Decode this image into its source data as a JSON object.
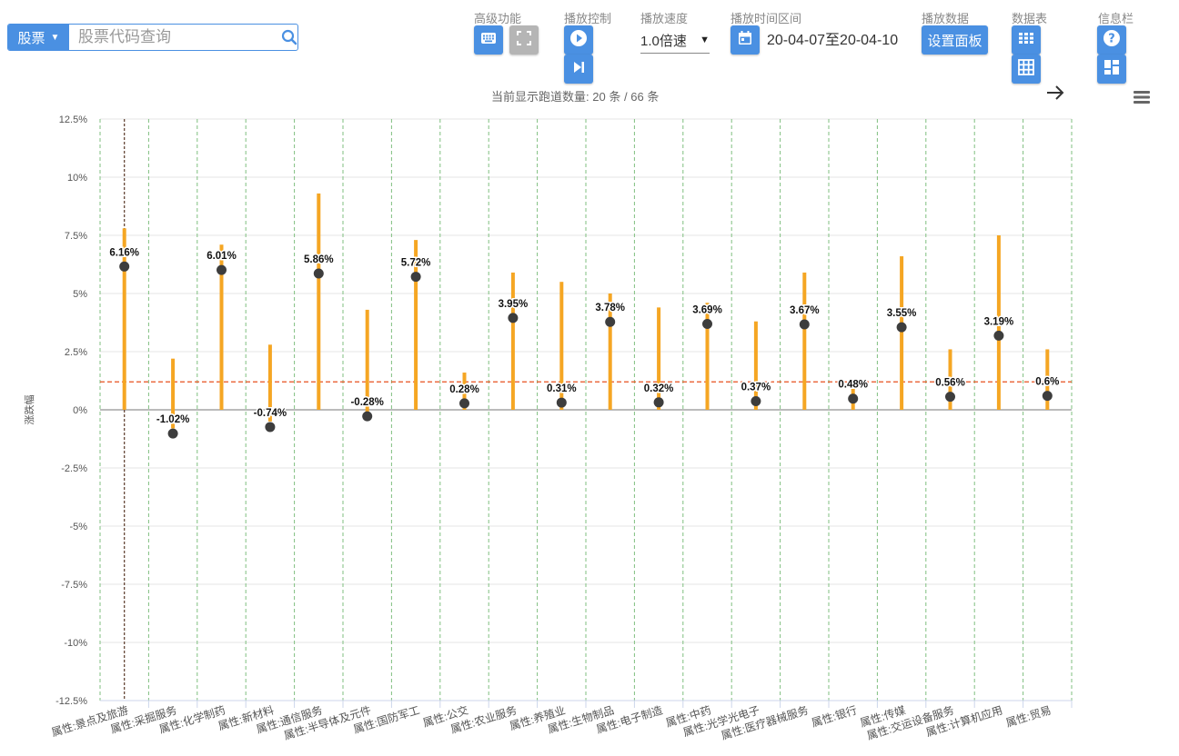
{
  "search": {
    "type_label": "股票",
    "placeholder": "股票代码查询"
  },
  "toolbar": {
    "advanced_label": "高级功能",
    "playback_control_label": "播放控制",
    "playback_speed_label": "播放速度",
    "speed_value": "1.0倍速",
    "time_range_label": "播放时间区间",
    "time_range_value": "20-04-07至20-04-10",
    "play_data_label": "播放数据",
    "set_panel_label": "设置面板",
    "data_table_label": "数据表",
    "info_bar_label": "信息栏"
  },
  "status": {
    "prefix": "当前显示跑道数量:",
    "shown": "20",
    "total": "66",
    "unit": "条",
    "separator": "/"
  },
  "icons": {
    "keyboard": "keyboard-icon",
    "fullscreen": "fullscreen-icon",
    "play": "play-icon",
    "step": "skip-next-icon",
    "calendar": "calendar-icon",
    "grid_small": "grid-small-icon",
    "grid_large": "grid-large-icon",
    "help": "help-icon",
    "dashboard": "dashboard-icon",
    "arrow": "arrow-right-icon",
    "menu": "menu-icon"
  },
  "colors": {
    "accent": "#4a90e2",
    "bar": "#f5a623",
    "point": "#3d3d3d",
    "reference_line": "#e8501e",
    "grid_dash": "#7fbf7f"
  },
  "chart_data": {
    "type": "scatter",
    "ylabel": "涨跌幅",
    "ylim": [
      -12.5,
      12.5
    ],
    "yticks": [
      "12.5%",
      "10%",
      "7.5%",
      "5%",
      "2.5%",
      "0%",
      "-2.5%",
      "-5%",
      "-7.5%",
      "-10%",
      "-12.5%"
    ],
    "ytick_values": [
      12.5,
      10,
      7.5,
      5,
      2.5,
      0,
      -2.5,
      -5,
      -7.5,
      -10,
      -12.5
    ],
    "reference_line": 1.2,
    "categories": [
      "属性:景点及旅游",
      "属性:采掘服务",
      "属性:化学制药",
      "属性:新材料",
      "属性:通信服务",
      "属性:半导体及元件",
      "属性:国防军工",
      "属性:公交",
      "属性:农业服务",
      "属性:养殖业",
      "属性:生物制品",
      "属性:电子制造",
      "属性:中药",
      "属性:光学光电子",
      "属性:医疗器械服务",
      "属性:银行",
      "属性:传媒",
      "属性:交运设备服务",
      "属性:计算机应用",
      "属性:贸易"
    ],
    "values": [
      6.16,
      -1.02,
      6.01,
      -0.74,
      5.86,
      -0.28,
      5.72,
      0.28,
      3.95,
      0.31,
      3.78,
      0.32,
      3.69,
      0.37,
      3.67,
      0.48,
      3.55,
      0.56,
      3.19,
      0.6
    ],
    "labels": [
      "6.16%",
      "-1.02%",
      "6.01%",
      "-0.74%",
      "5.86%",
      "-0.28%",
      "5.72%",
      "0.28%",
      "3.95%",
      "0.31%",
      "3.78%",
      "0.32%",
      "3.69%",
      "0.37%",
      "3.67%",
      "0.48%",
      "3.55%",
      "0.56%",
      "3.19%",
      "0.6%"
    ],
    "range_high": [
      7.8,
      2.2,
      7.1,
      2.8,
      9.3,
      4.3,
      7.3,
      1.6,
      5.9,
      5.5,
      5.0,
      4.4,
      4.6,
      3.8,
      5.9,
      0.9,
      6.6,
      2.6,
      7.5,
      2.6
    ],
    "range_low": [
      0,
      -0.8,
      0,
      -0.5,
      0,
      -0.2,
      0,
      0,
      0,
      0,
      0,
      0,
      0,
      0,
      0,
      0,
      0,
      0,
      0,
      0
    ],
    "highlight_index": 0
  }
}
